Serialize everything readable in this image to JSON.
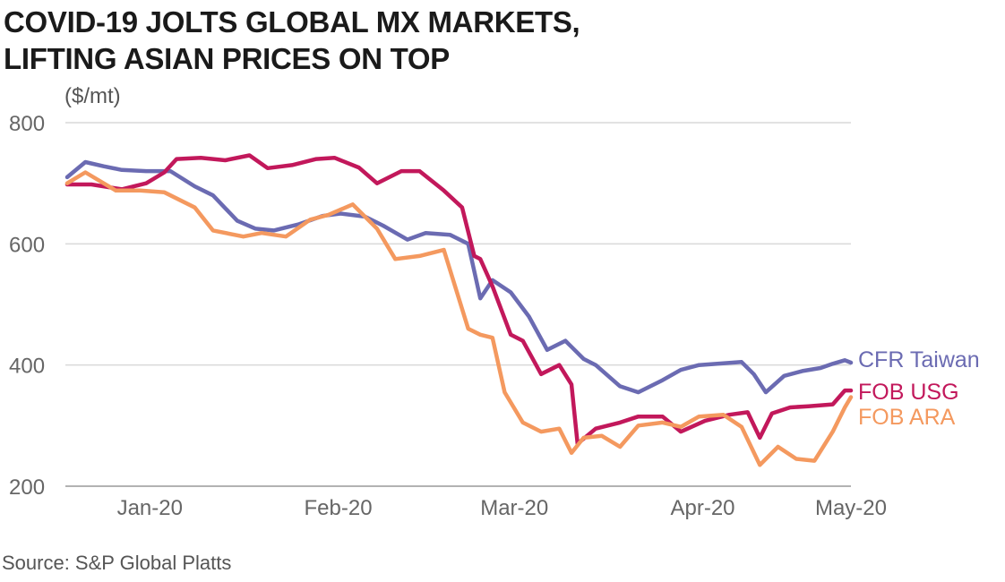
{
  "title_lines": [
    "COVID-19 JOLTS GLOBAL MX MARKETS,",
    "LIFTING ASIAN PRICES ON TOP"
  ],
  "source": "Source: S&P Global Platts",
  "chart_data": {
    "type": "line",
    "title": "COVID-19 JOLTS GLOBAL MX MARKETS, LIFTING ASIAN PRICES ON TOP",
    "unit_label": "($/mt)",
    "xlabel": "",
    "ylabel": "",
    "ylim": [
      200,
      800
    ],
    "yticks": [
      200,
      400,
      600,
      800
    ],
    "y_tick_labels": [
      "200",
      "400",
      "600",
      "800"
    ],
    "x_tick_labels": [
      "Jan-20",
      "Feb-20",
      "Mar-20",
      "Apr-20",
      "May-20"
    ],
    "x_tick_dates": [
      "2020-01-01",
      "2020-02-01",
      "2020-03-01",
      "2020-04-01",
      "2020-05-01"
    ],
    "x_range": [
      "2019-12-24",
      "2020-05-01"
    ],
    "grid": true,
    "legend": "right, labels at line ends",
    "series": [
      {
        "name": "CFR Taiwan",
        "color": "#6b6bb2",
        "x": [
          "2019-12-24",
          "2019-12-27",
          "2019-12-30",
          "2020-01-02",
          "2020-01-06",
          "2020-01-10",
          "2020-01-14",
          "2020-01-17",
          "2020-01-21",
          "2020-01-24",
          "2020-01-27",
          "2020-01-31",
          "2020-02-04",
          "2020-02-07",
          "2020-02-11",
          "2020-02-14",
          "2020-02-18",
          "2020-02-21",
          "2020-02-25",
          "2020-02-28",
          "2020-03-01",
          "2020-03-03",
          "2020-03-06",
          "2020-03-09",
          "2020-03-12",
          "2020-03-15",
          "2020-03-18",
          "2020-03-20",
          "2020-03-24",
          "2020-03-27",
          "2020-03-31",
          "2020-04-03",
          "2020-04-06",
          "2020-04-09",
          "2020-04-13",
          "2020-04-15",
          "2020-04-17",
          "2020-04-20",
          "2020-04-23",
          "2020-04-26",
          "2020-04-28",
          "2020-04-30",
          "2020-05-01"
        ],
        "values": [
          710,
          735,
          728,
          722,
          720,
          720,
          695,
          680,
          638,
          625,
          622,
          632,
          646,
          650,
          645,
          630,
          607,
          618,
          615,
          600,
          510,
          540,
          520,
          480,
          425,
          440,
          410,
          400,
          365,
          355,
          375,
          392,
          400,
          402,
          405,
          385,
          355,
          382,
          390,
          395,
          402,
          408,
          404
        ]
      },
      {
        "name": "FOB USG",
        "color": "#c2185b",
        "x": [
          "2019-12-24",
          "2019-12-28",
          "2020-01-02",
          "2020-01-06",
          "2020-01-09",
          "2020-01-11",
          "2020-01-15",
          "2020-01-19",
          "2020-01-23",
          "2020-01-26",
          "2020-01-30",
          "2020-02-03",
          "2020-02-06",
          "2020-02-10",
          "2020-02-13",
          "2020-02-17",
          "2020-02-20",
          "2020-02-24",
          "2020-02-27",
          "2020-02-29",
          "2020-03-01",
          "2020-03-03",
          "2020-03-06",
          "2020-03-08",
          "2020-03-11",
          "2020-03-14",
          "2020-03-16",
          "2020-03-17",
          "2020-03-20",
          "2020-03-24",
          "2020-03-27",
          "2020-03-31",
          "2020-04-03",
          "2020-04-07",
          "2020-04-11",
          "2020-04-14",
          "2020-04-16",
          "2020-04-18",
          "2020-04-21",
          "2020-04-24",
          "2020-04-28",
          "2020-04-30",
          "2020-05-01"
        ],
        "values": [
          698,
          698,
          690,
          700,
          718,
          740,
          742,
          738,
          746,
          725,
          730,
          740,
          742,
          726,
          700,
          720,
          720,
          688,
          660,
          580,
          575,
          530,
          450,
          440,
          385,
          400,
          368,
          270,
          295,
          305,
          315,
          315,
          290,
          308,
          318,
          322,
          280,
          320,
          330,
          332,
          335,
          358,
          358
        ]
      },
      {
        "name": "FOB ARA",
        "color": "#f4995f",
        "x": [
          "2019-12-24",
          "2019-12-27",
          "2020-01-01",
          "2020-01-05",
          "2020-01-09",
          "2020-01-14",
          "2020-01-17",
          "2020-01-22",
          "2020-01-25",
          "2020-01-29",
          "2020-02-02",
          "2020-02-05",
          "2020-02-09",
          "2020-02-13",
          "2020-02-16",
          "2020-02-20",
          "2020-02-24",
          "2020-02-28",
          "2020-03-01",
          "2020-03-03",
          "2020-03-05",
          "2020-03-08",
          "2020-03-11",
          "2020-03-14",
          "2020-03-16",
          "2020-03-18",
          "2020-03-21",
          "2020-03-24",
          "2020-03-27",
          "2020-03-31",
          "2020-04-03",
          "2020-04-06",
          "2020-04-10",
          "2020-04-13",
          "2020-04-16",
          "2020-04-19",
          "2020-04-22",
          "2020-04-25",
          "2020-04-28",
          "2020-04-30",
          "2020-05-01"
        ],
        "values": [
          700,
          718,
          688,
          688,
          685,
          660,
          622,
          612,
          618,
          612,
          640,
          648,
          665,
          625,
          575,
          580,
          590,
          460,
          450,
          445,
          355,
          305,
          290,
          295,
          255,
          280,
          283,
          265,
          300,
          305,
          298,
          315,
          318,
          298,
          235,
          265,
          245,
          242,
          290,
          330,
          347
        ]
      }
    ]
  }
}
